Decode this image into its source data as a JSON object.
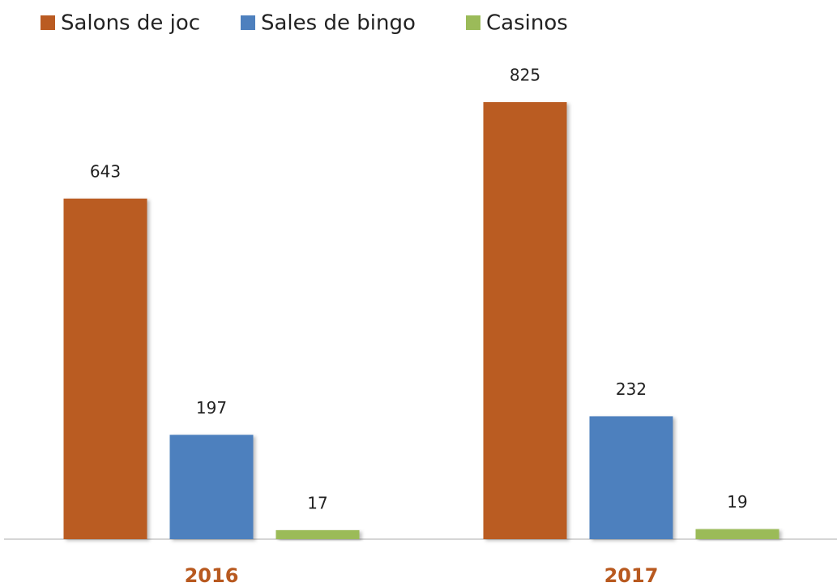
{
  "chart_data": {
    "type": "bar",
    "categories": [
      "2016",
      "2017"
    ],
    "category_label_color": "#b8591f",
    "series": [
      {
        "name": "Salons de joc",
        "color": "#ba5b22",
        "values": [
          643,
          825
        ]
      },
      {
        "name": "Sales de bingo",
        "color": "#4e80be",
        "values": [
          197,
          232
        ]
      },
      {
        "name": "Casinos",
        "color": "#9bbb59",
        "values": [
          17,
          19
        ]
      }
    ],
    "legend": "top-left"
  }
}
